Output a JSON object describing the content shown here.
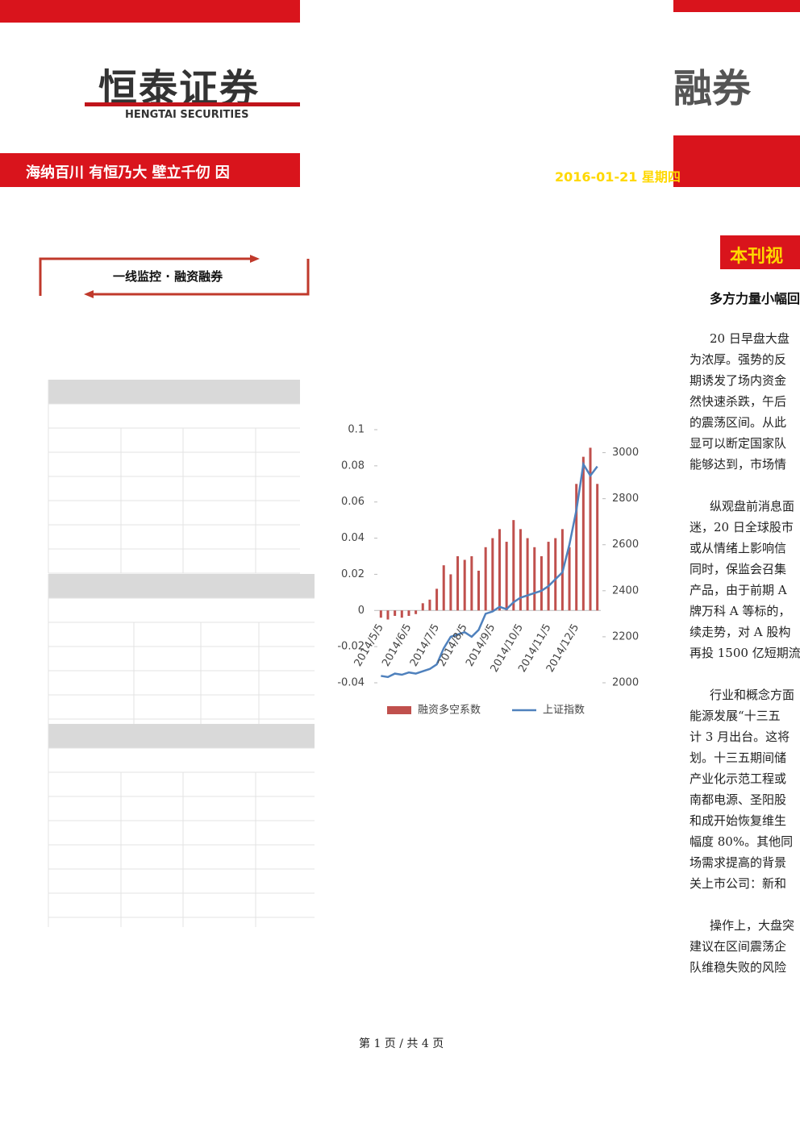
{
  "header": {
    "logo": "恒泰证券",
    "logo_en": "HENGTAI SECURITIES",
    "slogan": "海纳百川 有恒乃大 壁立千仞 因",
    "logo_right": "融券",
    "date": "2016-01-21 星期四"
  },
  "section": {
    "title": "一线监控 · 融资融券"
  },
  "sidebar": {
    "heading": "本刊视",
    "subtitle": "多方力量小幅回",
    "paragraphs": [
      [
        "20 日早盘大盘",
        "为浓厚。强势的反",
        "期诱发了场内资金",
        "然快速杀跌，午后",
        "的震荡区间。从此",
        "显可以断定国家队",
        "能够达到，市场情"
      ],
      [
        "纵观盘前消息面",
        "迷，20 日全球股市",
        "或从情绪上影响信",
        "同时，保监会召集",
        "产品，由于前期 A",
        "牌万科 A 等标的，",
        "续走势，对 A 股构",
        "再投 1500 亿短期流"
      ],
      [
        "行业和概念方面",
        "能源发展“十三五",
        "计 3 月出台。这将",
        "划。十三五期间储",
        "产业化示范工程或",
        "南都电源、圣阳股",
        "和成开始恢复维生",
        "幅度 80%。其他同",
        "场需求提高的背景",
        "关上市公司：新和"
      ],
      [
        "操作上，大盘突",
        "建议在区间震荡企",
        "队维稳失败的风险"
      ]
    ]
  },
  "chart_data": {
    "type": "bar-line",
    "categories": [
      "2014/5/5",
      null,
      null,
      null,
      "2014/6/5",
      null,
      null,
      null,
      "2014/7/5",
      null,
      null,
      null,
      "2014/8/5",
      null,
      null,
      null,
      "2014/9/5",
      null,
      null,
      null,
      "2014/10/5",
      null,
      null,
      null,
      "2014/11/5",
      null,
      null,
      null,
      "2014/12/5",
      null,
      null,
      null
    ],
    "series": [
      {
        "name": "融资多空系数",
        "color": "#c0504d",
        "type": "bar",
        "values": [
          -0.004,
          -0.005,
          -0.003,
          -0.004,
          -0.003,
          -0.002,
          0.004,
          0.006,
          0.012,
          0.025,
          0.02,
          0.03,
          0.028,
          0.03,
          0.022,
          0.035,
          0.04,
          0.045,
          0.038,
          0.05,
          0.045,
          0.04,
          0.035,
          0.03,
          0.038,
          0.04,
          0.045,
          0.035,
          0.07,
          0.085,
          0.09,
          0.07
        ]
      },
      {
        "name": "上证指数",
        "color": "#4f81bd",
        "type": "line",
        "axis": "y2",
        "values": [
          2030,
          2025,
          2040,
          2035,
          2045,
          2040,
          2050,
          2060,
          2080,
          2150,
          2200,
          2210,
          2220,
          2200,
          2230,
          2300,
          2310,
          2330,
          2320,
          2350,
          2370,
          2380,
          2390,
          2400,
          2420,
          2450,
          2480,
          2600,
          2750,
          2950,
          2900,
          2940
        ]
      }
    ],
    "ylim": [
      -0.04,
      0.1
    ],
    "yticks": [
      -0.04,
      -0.02,
      0,
      0.02,
      0.04,
      0.06,
      0.08,
      0.1
    ],
    "y2lim": [
      2000,
      3100
    ],
    "y2ticks": [
      2000,
      2200,
      2400,
      2600,
      2800,
      3000
    ],
    "legend": "bottom"
  },
  "footer": {
    "page": "第 1 页 / 共 4 页"
  }
}
